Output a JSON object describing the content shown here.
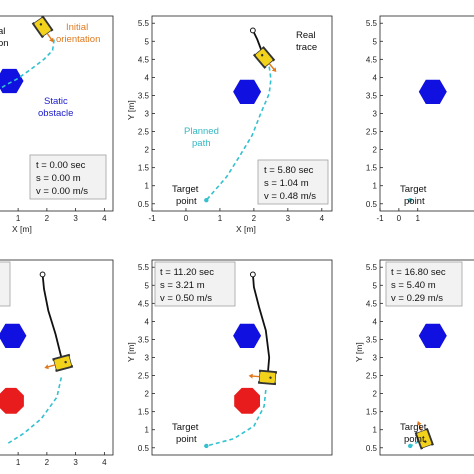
{
  "colors": {
    "planned_path": "#33c1cf",
    "real_trace": "#111111",
    "static_obstacle": "#1010e0",
    "dynamic_obstacle": "#e81c1c",
    "robot_body": "#f2d21b",
    "orientation_arrow": "#e07a1f",
    "info_box_fill": "#f2f2f2",
    "info_box_stroke": "#a0a0a0"
  },
  "icons": [
    "robot-icon",
    "start-marker-icon",
    "target-marker-icon"
  ],
  "labels": {
    "xlabel": "X [m]",
    "ylabel": "Y [m]",
    "real_trace": "Real",
    "real_trace_2": "trace",
    "planned_path": "Planned",
    "planned_path_2": "path",
    "target_point": "Target",
    "target_point_2": "point",
    "static_obstacle": "Static",
    "static_obstacle_2": "obstacle",
    "initial_orientation": "Initial",
    "initial_orientation_2": "orientation",
    "start_partial": "al",
    "start_partial_2": "on"
  },
  "chart_data": [
    {
      "type": "scatter",
      "panel": "top-left",
      "info_lines": [
        "t = 0.00 sec",
        "s = 0.00 m",
        "v = 0.00 m/s"
      ],
      "xlim": [
        0.3,
        4.3
      ],
      "ylim": [
        0.3,
        5.7
      ],
      "xticks": [
        "1",
        "2",
        "3",
        "4"
      ],
      "yticks": [],
      "show_xlabel": true,
      "show_ylabel": false,
      "robot": {
        "x": 1.85,
        "y": 5.4,
        "angle": -35
      },
      "static_obstacle": {
        "x": 0.7,
        "y": 3.9
      },
      "dynamic_obstacle": null,
      "planned_path": [
        [
          2.25,
          5.05
        ],
        [
          2.2,
          4.75
        ],
        [
          1.9,
          4.5
        ],
        [
          1.4,
          4.2
        ],
        [
          0.95,
          3.95
        ],
        [
          0.6,
          3.8
        ],
        [
          0.3,
          3.65
        ]
      ],
      "real_trace": [],
      "target": null
    },
    {
      "type": "scatter",
      "panel": "top-middle",
      "info_lines": [
        "t = 5.80 sec",
        "s = 1.04 m",
        "v = 0.48 m/s"
      ],
      "xlim": [
        -1,
        4.3
      ],
      "ylim": [
        0.3,
        5.7
      ],
      "xticks": [
        "-1",
        "0",
        "1",
        "2",
        "3",
        "4"
      ],
      "yticks": [
        "0.5",
        "1",
        "1.5",
        "2",
        "2.5",
        "3",
        "3.5",
        "4",
        "4.5",
        "5",
        "5.5"
      ],
      "show_xlabel": true,
      "show_ylabel": true,
      "robot": {
        "x": 2.3,
        "y": 4.55,
        "angle": -40
      },
      "static_obstacle": {
        "x": 1.8,
        "y": 3.6
      },
      "dynamic_obstacle": null,
      "real_trace": [
        [
          1.97,
          5.3
        ],
        [
          2.1,
          5.05
        ],
        [
          2.2,
          4.8
        ],
        [
          2.3,
          4.55
        ]
      ],
      "planned_path": [
        [
          2.45,
          4.3
        ],
        [
          2.5,
          3.95
        ],
        [
          2.45,
          3.55
        ],
        [
          2.2,
          3.0
        ],
        [
          1.95,
          2.4
        ],
        [
          1.6,
          1.85
        ],
        [
          1.2,
          1.25
        ],
        [
          0.6,
          0.6
        ]
      ],
      "target": {
        "x": 0.6,
        "y": 0.6
      }
    },
    {
      "type": "scatter",
      "panel": "top-right",
      "info_lines": [],
      "xlim": [
        -1,
        4.3
      ],
      "ylim": [
        0.3,
        5.7
      ],
      "xticks": [
        "-1",
        "0",
        "1"
      ],
      "yticks": [
        "0.5",
        "1",
        "1.5",
        "2",
        "2.5",
        "3",
        "3.5",
        "4",
        "4.5",
        "5",
        "5.5"
      ],
      "show_xlabel": false,
      "show_ylabel": false,
      "robot": null,
      "static_obstacle": {
        "x": 1.8,
        "y": 3.6
      },
      "dynamic_obstacle": null,
      "real_trace": [],
      "planned_path": [],
      "target": {
        "x": 0.6,
        "y": 0.6
      }
    },
    {
      "type": "scatter",
      "panel": "bottom-left",
      "info_lines": [],
      "xlim": [
        0.3,
        4.3
      ],
      "ylim": [
        0.3,
        5.7
      ],
      "xticks": [
        "1",
        "2",
        "3",
        "4"
      ],
      "yticks": [],
      "show_xlabel": false,
      "show_ylabel": false,
      "robot": {
        "x": 2.55,
        "y": 2.85,
        "angle": 75
      },
      "static_obstacle": {
        "x": 0.8,
        "y": 3.6
      },
      "dynamic_obstacle": {
        "x": 0.75,
        "y": 1.8
      },
      "real_trace": [
        [
          1.85,
          5.3
        ],
        [
          1.9,
          4.9
        ],
        [
          2.05,
          4.3
        ],
        [
          2.3,
          3.65
        ],
        [
          2.55,
          2.85
        ]
      ],
      "planned_path": [
        [
          2.5,
          2.45
        ],
        [
          2.35,
          1.9
        ],
        [
          1.8,
          1.3
        ],
        [
          1.2,
          0.9
        ],
        [
          0.6,
          0.6
        ]
      ],
      "target": null
    },
    {
      "type": "scatter",
      "panel": "bottom-middle",
      "info_lines": [
        "t = 11.20 sec",
        "s = 3.21 m",
        "v = 0.50 m/s"
      ],
      "xlim": [
        -1,
        4.3
      ],
      "ylim": [
        0.3,
        5.7
      ],
      "xticks": [],
      "yticks": [
        "0.5",
        "1",
        "1.5",
        "2",
        "2.5",
        "3",
        "3.5",
        "4",
        "4.5",
        "5",
        "5.5"
      ],
      "show_xlabel": false,
      "show_ylabel": true,
      "robot": {
        "x": 2.4,
        "y": 2.45,
        "angle": 95
      },
      "static_obstacle": {
        "x": 1.8,
        "y": 3.6
      },
      "dynamic_obstacle": {
        "x": 1.8,
        "y": 1.8
      },
      "real_trace": [
        [
          1.97,
          5.3
        ],
        [
          2.0,
          4.95
        ],
        [
          2.15,
          4.4
        ],
        [
          2.35,
          3.75
        ],
        [
          2.45,
          3.0
        ],
        [
          2.4,
          2.45
        ]
      ],
      "planned_path": [
        [
          2.35,
          2.1
        ],
        [
          2.3,
          1.65
        ],
        [
          2.0,
          1.1
        ],
        [
          1.4,
          0.75
        ],
        [
          0.6,
          0.55
        ]
      ],
      "target": {
        "x": 0.6,
        "y": 0.55
      }
    },
    {
      "type": "scatter",
      "panel": "bottom-right",
      "info_lines": [
        "t = 16.80 sec",
        "s = 5.40 m",
        "v = 0.29 m/s"
      ],
      "xlim": [
        -1,
        4.3
      ],
      "ylim": [
        0.3,
        5.7
      ],
      "xticks": [],
      "yticks": [
        "0.5",
        "1",
        "1.5",
        "2",
        "2.5",
        "3",
        "3.5",
        "4",
        "4.5",
        "5",
        "5.5"
      ],
      "show_xlabel": false,
      "show_ylabel": true,
      "robot": {
        "x": 1.35,
        "y": 0.75,
        "angle": 160
      },
      "static_obstacle": {
        "x": 1.8,
        "y": 3.6
      },
      "dynamic_obstacle": null,
      "real_trace": [],
      "planned_path": [
        [
          1.05,
          0.68
        ],
        [
          0.8,
          0.6
        ],
        [
          0.6,
          0.55
        ]
      ],
      "target": {
        "x": 0.6,
        "y": 0.55
      }
    }
  ]
}
